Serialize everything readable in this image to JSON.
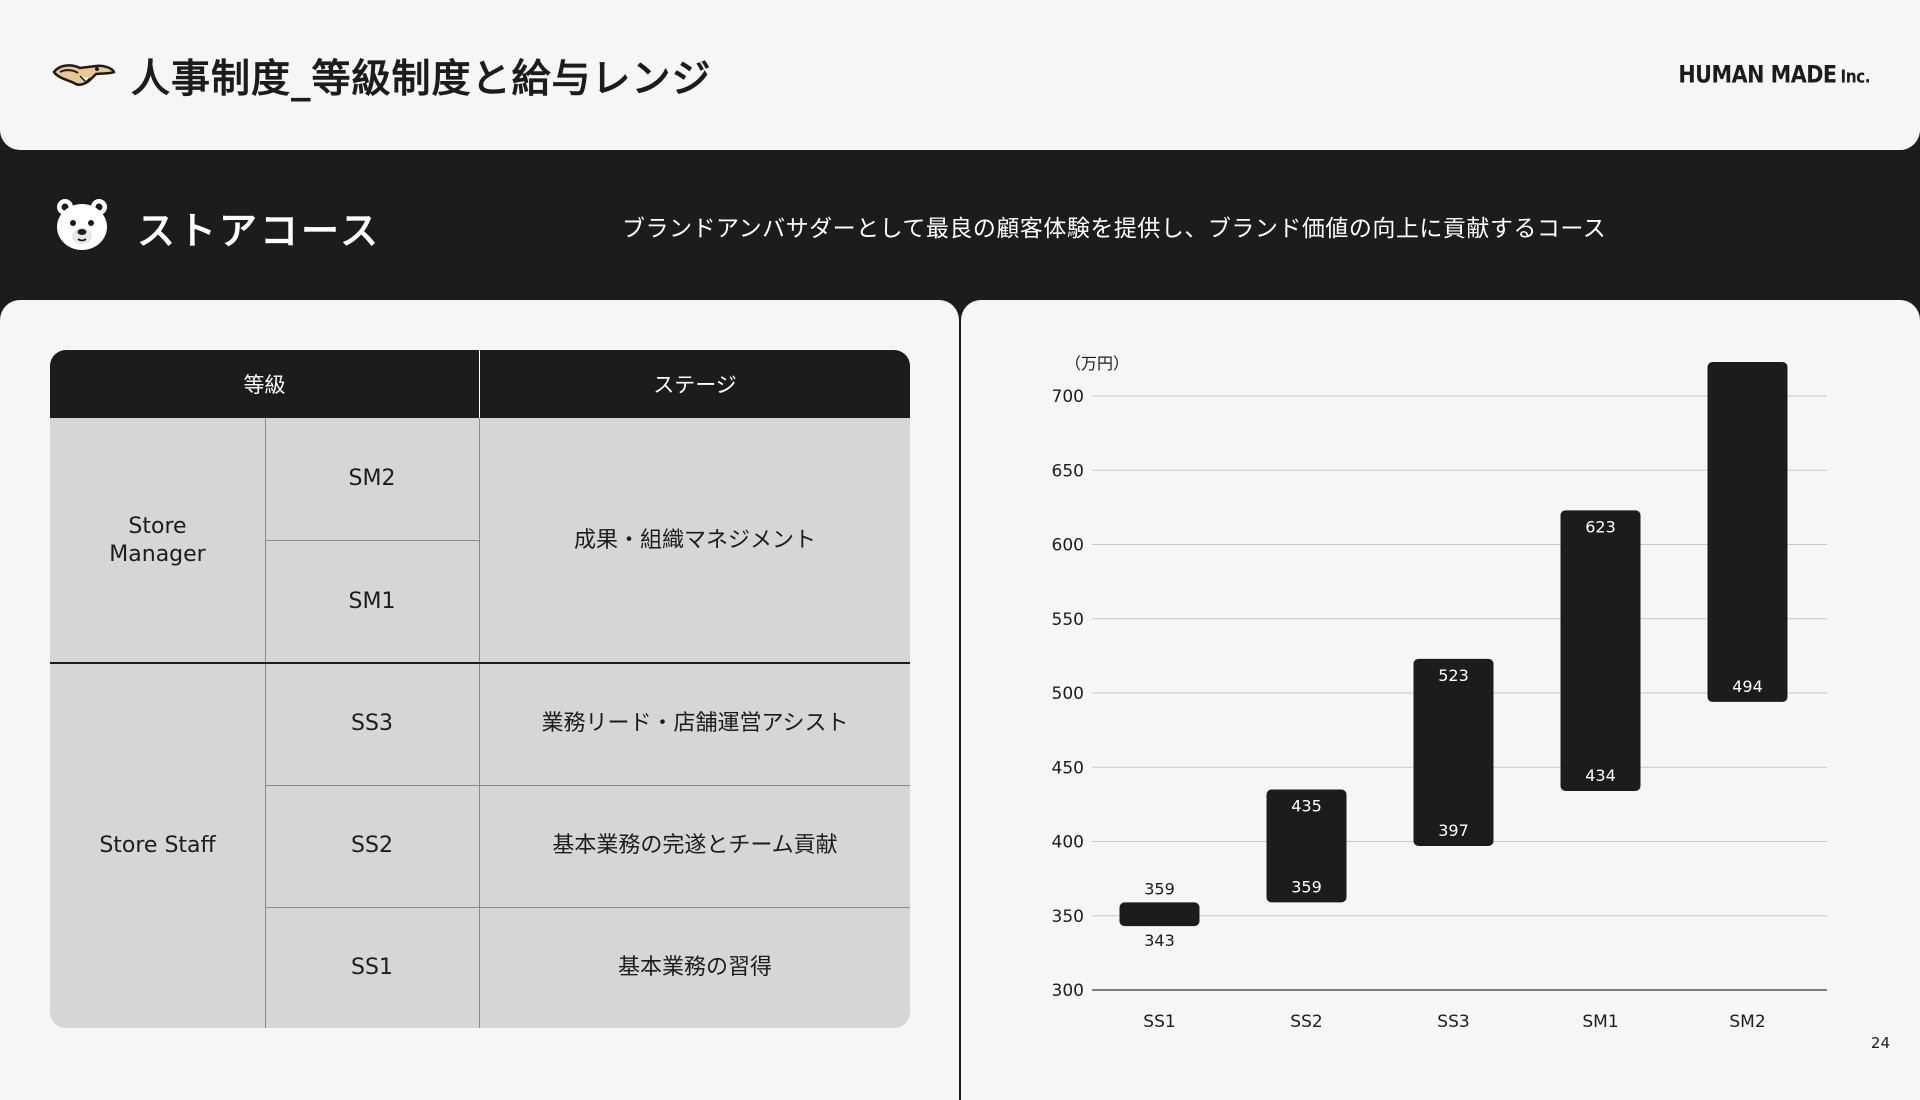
{
  "header": {
    "title": "人事制度_等級制度と給与レンジ",
    "brand": "HUMAN MADE",
    "brand_suffix": "Inc."
  },
  "course": {
    "title": "ストアコース",
    "description": "ブランドアンバサダーとして最良の顧客体験を提供し、ブランド価値の向上に貢献するコース"
  },
  "table": {
    "header_grade": "等級",
    "header_stage": "ステージ",
    "groups": [
      {
        "label": "Store\nManager",
        "grades": [
          "SM2",
          "SM1"
        ],
        "stage": "成果・組織マネジメント"
      },
      {
        "label": "Store Staff",
        "grades": [
          "SS3",
          "SS2",
          "SS1"
        ],
        "stages": [
          "業務リード・店舗運営アシスト",
          "基本業務の完遂とチーム貢献",
          "基本業務の習得"
        ]
      }
    ]
  },
  "chart_data": {
    "type": "bar",
    "subtype": "floating-range",
    "unit_label": "（万円）",
    "categories": [
      "SS1",
      "SS2",
      "SS3",
      "SM1",
      "SM2"
    ],
    "series": [
      {
        "low": [
          343,
          359,
          397,
          434,
          494
        ],
        "high": [
          359,
          435,
          523,
          623,
          null
        ]
      }
    ],
    "high_extends_beyond_axis": [
      false,
      false,
      false,
      false,
      true
    ],
    "ylim": [
      300,
      700
    ],
    "yticks": [
      300,
      350,
      400,
      450,
      500,
      550,
      600,
      650,
      700
    ],
    "grid": true,
    "bar_color": "#1c1c1c"
  },
  "page_number": "24",
  "colors": {
    "background": "#f6f6f6",
    "dark": "#1c1c1c",
    "table_body": "#d6d6d6"
  }
}
